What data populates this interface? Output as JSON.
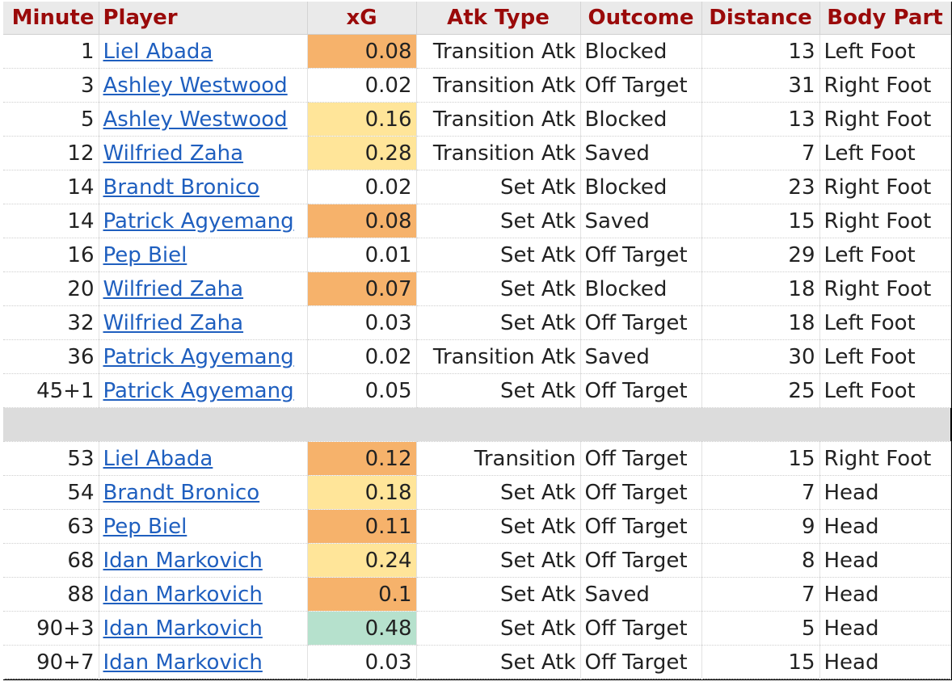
{
  "table": {
    "headers": {
      "minute": "Minute",
      "player": "Player",
      "xg": "xG",
      "atk_type": "Atk Type",
      "outcome": "Outcome",
      "distance": "Distance",
      "body_part": "Body Part"
    },
    "xg_colors": {
      "orange": "#f6b26b",
      "yellow": "#ffe599",
      "green": "#b6e1cd",
      "none": "#ffffff"
    },
    "first_half": [
      {
        "minute": "1",
        "player": "Liel Abada",
        "xg": "0.08",
        "xg_fill": "orange",
        "atk_type": "Transition Atk",
        "outcome": "Blocked",
        "distance": "13",
        "body_part": "Left Foot"
      },
      {
        "minute": "3",
        "player": "Ashley Westwood",
        "xg": "0.02",
        "xg_fill": "none",
        "atk_type": "Transition Atk",
        "outcome": "Off Target",
        "distance": "31",
        "body_part": "Right Foot"
      },
      {
        "minute": "5",
        "player": "Ashley Westwood",
        "xg": "0.16",
        "xg_fill": "yellow",
        "atk_type": "Transition Atk",
        "outcome": "Blocked",
        "distance": "13",
        "body_part": "Right Foot"
      },
      {
        "minute": "12",
        "player": "Wilfried Zaha",
        "xg": "0.28",
        "xg_fill": "yellow",
        "atk_type": "Transition Atk",
        "outcome": "Saved",
        "distance": "7",
        "body_part": "Left Foot"
      },
      {
        "minute": "14",
        "player": "Brandt Bronico",
        "xg": "0.02",
        "xg_fill": "none",
        "atk_type": "Set Atk",
        "outcome": "Blocked",
        "distance": "23",
        "body_part": "Right Foot"
      },
      {
        "minute": "14",
        "player": "Patrick Agyemang",
        "xg": "0.08",
        "xg_fill": "orange",
        "atk_type": "Set Atk",
        "outcome": "Saved",
        "distance": "15",
        "body_part": "Right Foot"
      },
      {
        "minute": "16",
        "player": "Pep Biel",
        "xg": "0.01",
        "xg_fill": "none",
        "atk_type": "Set Atk",
        "outcome": "Off Target",
        "distance": "29",
        "body_part": "Left Foot"
      },
      {
        "minute": "20",
        "player": "Wilfried Zaha",
        "xg": "0.07",
        "xg_fill": "orange",
        "atk_type": "Set Atk",
        "outcome": "Blocked",
        "distance": "18",
        "body_part": "Right Foot"
      },
      {
        "minute": "32",
        "player": "Wilfried Zaha",
        "xg": "0.03",
        "xg_fill": "none",
        "atk_type": "Set Atk",
        "outcome": "Off Target",
        "distance": "18",
        "body_part": "Left Foot"
      },
      {
        "minute": "36",
        "player": "Patrick Agyemang",
        "xg": "0.02",
        "xg_fill": "none",
        "atk_type": "Transition Atk",
        "outcome": "Saved",
        "distance": "30",
        "body_part": "Left Foot"
      },
      {
        "minute": "45+1",
        "player": "Patrick Agyemang",
        "xg": "0.05",
        "xg_fill": "none",
        "atk_type": "Set Atk",
        "outcome": "Off Target",
        "distance": "25",
        "body_part": "Left Foot"
      }
    ],
    "second_half": [
      {
        "minute": "53",
        "player": "Liel Abada",
        "xg": "0.12",
        "xg_fill": "orange",
        "atk_type": "Transition",
        "outcome": "Off Target",
        "distance": "15",
        "body_part": "Right Foot"
      },
      {
        "minute": "54",
        "player": "Brandt Bronico",
        "xg": "0.18",
        "xg_fill": "yellow",
        "atk_type": "Set Atk",
        "outcome": "Off Target",
        "distance": "7",
        "body_part": "Head"
      },
      {
        "minute": "63",
        "player": "Pep Biel",
        "xg": "0.11",
        "xg_fill": "orange",
        "atk_type": "Set Atk",
        "outcome": "Off Target",
        "distance": "9",
        "body_part": "Head"
      },
      {
        "minute": "68",
        "player": "Idan Markovich",
        "xg": "0.24",
        "xg_fill": "yellow",
        "atk_type": "Set Atk",
        "outcome": "Off Target",
        "distance": "8",
        "body_part": "Head"
      },
      {
        "minute": "88",
        "player": "Idan Markovich",
        "xg": "0.1",
        "xg_fill": "orange",
        "atk_type": "Set Atk",
        "outcome": "Saved",
        "distance": "7",
        "body_part": "Head"
      },
      {
        "minute": "90+3",
        "player": "Idan Markovich",
        "xg": "0.48",
        "xg_fill": "green",
        "atk_type": "Set Atk",
        "outcome": "Off Target",
        "distance": "5",
        "body_part": "Head"
      },
      {
        "minute": "90+7",
        "player": "Idan Markovich",
        "xg": "0.03",
        "xg_fill": "none",
        "atk_type": "Set Atk",
        "outcome": "Off Target",
        "distance": "15",
        "body_part": "Head"
      }
    ]
  }
}
